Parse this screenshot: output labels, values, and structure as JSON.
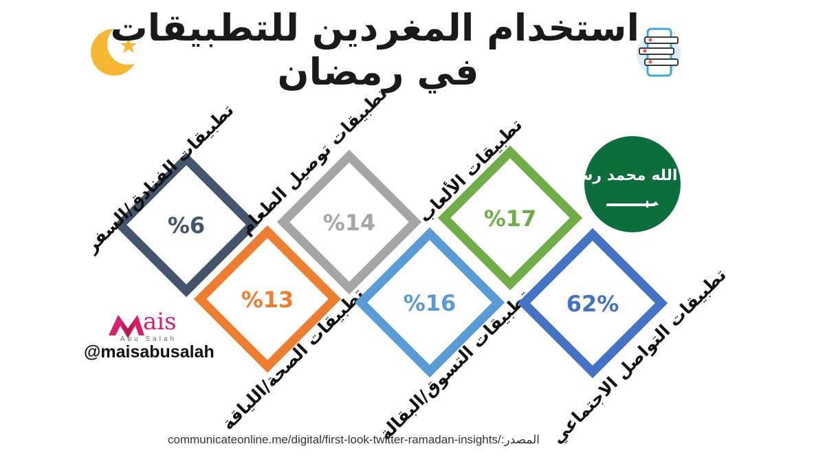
{
  "title": {
    "line1": "استخدام المغردين للتطبيقات",
    "line2": "في رمضان"
  },
  "brand": {
    "logo_text": "ais",
    "sub": "Abu Salah",
    "handle": "@maisabusalah"
  },
  "source": "communicateonline.me/digital/first-look-twitter-ramadan-insights/:المصدر",
  "flag": {
    "color": "#0c6e3d",
    "inscription": "لا إله إلا الله محمد رسول الله"
  },
  "icons": [
    "crescent-moon-star-icon",
    "phone-chat-icon",
    "saudi-flag-icon",
    "mais-logo-icon"
  ],
  "chart_data": {
    "type": "bar",
    "categories": [
      "تطبيقات الفنادق/السفر",
      "تطبيقات توصيل الطعام",
      "تطبيقات الألعاب",
      "تطبيقات الصحة/اللياقة",
      "تطبيقات التسوق/البقالة",
      "تطبيقات التواصل الاجتماعي"
    ],
    "values": [
      6,
      14,
      17,
      13,
      16,
      62
    ],
    "value_labels": [
      "%6",
      "%14",
      "%17",
      "%13",
      "%16",
      "62%"
    ],
    "colors": [
      "#44546a",
      "#a6a6a6",
      "#70ad47",
      "#ed7d31",
      "#5b9bd5",
      "#4472c4"
    ],
    "unit": "%"
  }
}
